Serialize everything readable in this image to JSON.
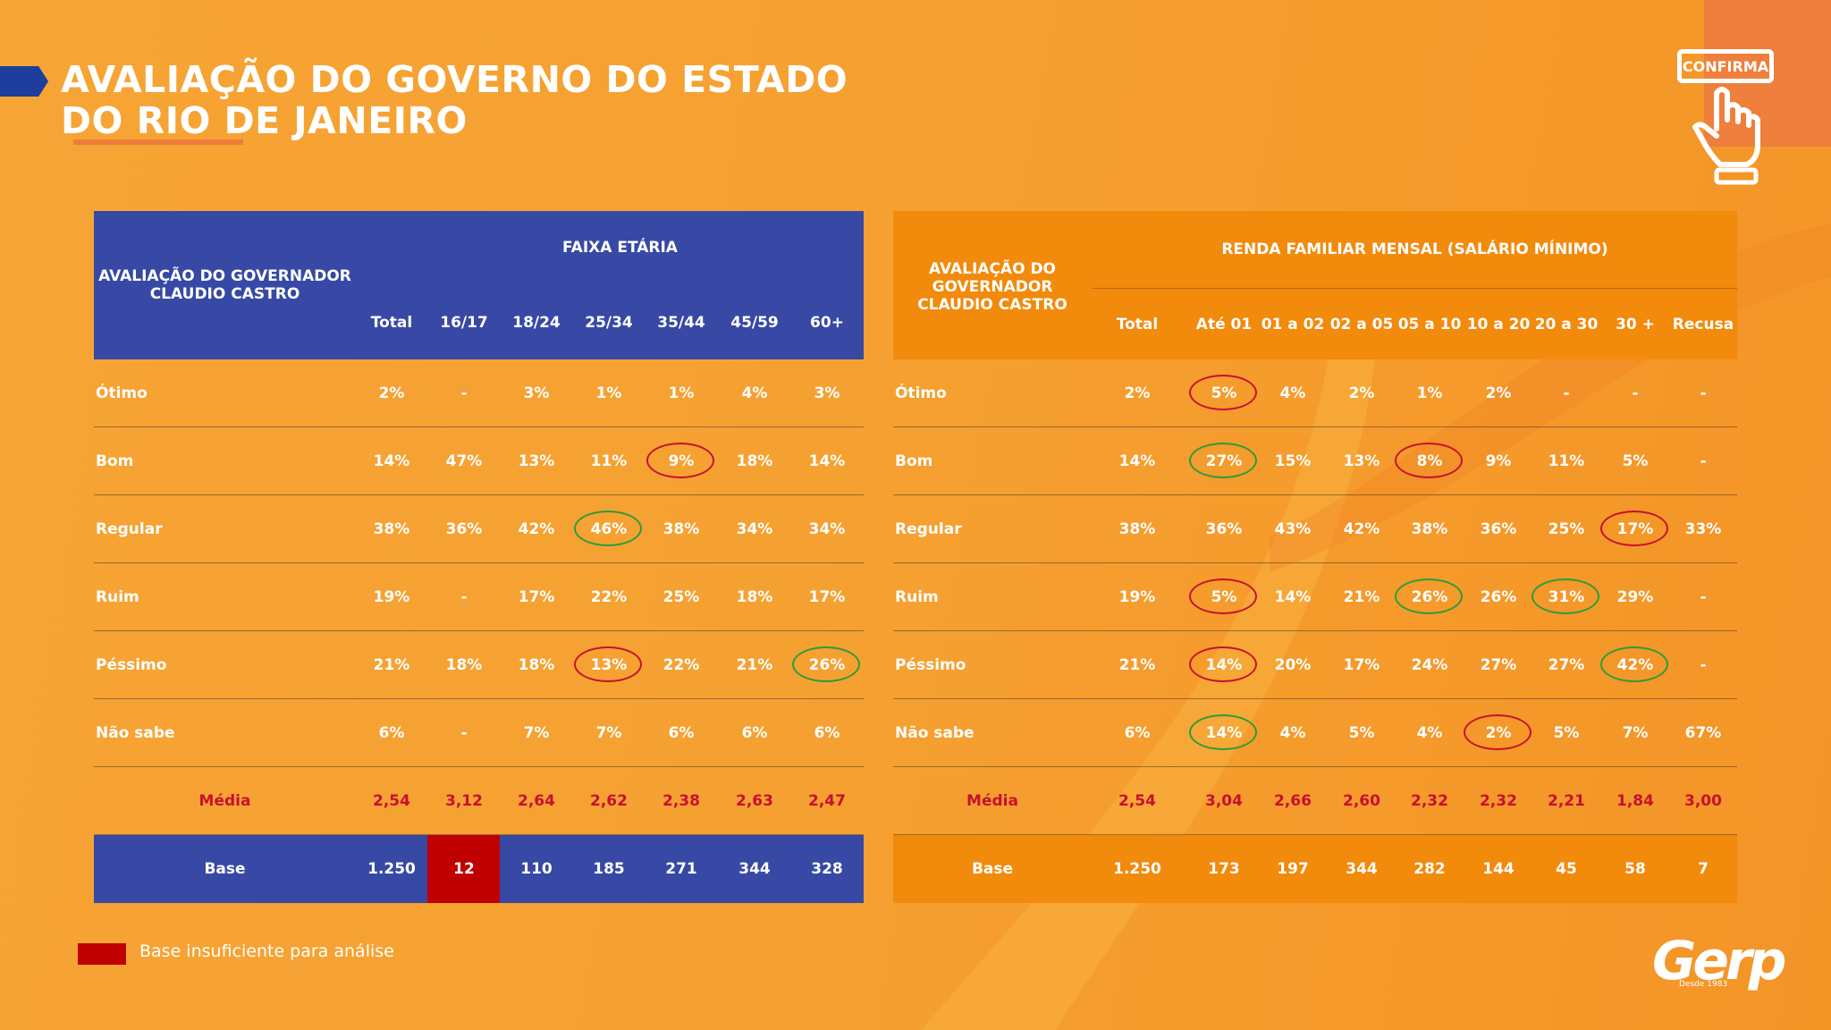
{
  "title": {
    "line1": "AVALIAÇÃO DO GOVERNO DO ESTADO",
    "line2": "DO RIO DE JANEIRO"
  },
  "badge": {
    "label": "CONFIRMA"
  },
  "left_table": {
    "corner_label": "AVALIAÇÃO DO GOVERNADOR CLAUDIO CASTRO",
    "group_header": "FAIXA ETÁRIA",
    "columns": [
      "Total",
      "16/17",
      "18/24",
      "25/34",
      "35/44",
      "45/59",
      "60+"
    ],
    "rows": [
      {
        "label": "Ótimo",
        "values": [
          "2%",
          "-",
          "3%",
          "1%",
          "1%",
          "4%",
          "3%"
        ]
      },
      {
        "label": "Bom",
        "values": [
          "14%",
          "47%",
          "13%",
          "11%",
          "9%",
          "18%",
          "14%"
        ]
      },
      {
        "label": "Regular",
        "values": [
          "38%",
          "36%",
          "42%",
          "46%",
          "38%",
          "34%",
          "34%"
        ]
      },
      {
        "label": "Ruim",
        "values": [
          "19%",
          "-",
          "17%",
          "22%",
          "25%",
          "18%",
          "17%"
        ]
      },
      {
        "label": "Péssimo",
        "values": [
          "21%",
          "18%",
          "18%",
          "13%",
          "22%",
          "21%",
          "26%"
        ]
      },
      {
        "label": "Não sabe",
        "values": [
          "6%",
          "-",
          "7%",
          "7%",
          "6%",
          "6%",
          "6%"
        ]
      }
    ],
    "media": {
      "label": "Média",
      "values": [
        "2,54",
        "3,12",
        "2,64",
        "2,62",
        "2,38",
        "2,63",
        "2,47"
      ]
    },
    "base": {
      "label": "Base",
      "values": [
        "1.250",
        "12",
        "110",
        "185",
        "271",
        "344",
        "328"
      ]
    },
    "colors": {
      "header": "#3749a4",
      "insufficient": "#c00000"
    },
    "highlights": [
      {
        "row": 1,
        "col": 4,
        "color": "red"
      },
      {
        "row": 2,
        "col": 3,
        "color": "green"
      },
      {
        "row": 4,
        "col": 3,
        "color": "red"
      },
      {
        "row": 4,
        "col": 6,
        "color": "green"
      }
    ]
  },
  "right_table": {
    "corner_label": "AVALIAÇÃO DO GOVERNADOR CLAUDIO CASTRO",
    "group_header": "RENDA FAMILIAR MENSAL (SALÁRIO MÍNIMO)",
    "columns": [
      "Total",
      "Até 01",
      "01 a 02",
      "02 a 05",
      "05 a 10",
      "10 a 20",
      "20 a 30",
      "30 +",
      "Recusa"
    ],
    "rows": [
      {
        "label": "Ótimo",
        "values": [
          "2%",
          "5%",
          "4%",
          "2%",
          "1%",
          "2%",
          "-",
          "-",
          "-"
        ]
      },
      {
        "label": "Bom",
        "values": [
          "14%",
          "27%",
          "15%",
          "13%",
          "8%",
          "9%",
          "11%",
          "5%",
          "-"
        ]
      },
      {
        "label": "Regular",
        "values": [
          "38%",
          "36%",
          "43%",
          "42%",
          "38%",
          "36%",
          "25%",
          "17%",
          "33%"
        ]
      },
      {
        "label": "Ruim",
        "values": [
          "19%",
          "5%",
          "14%",
          "21%",
          "26%",
          "26%",
          "31%",
          "29%",
          "-"
        ]
      },
      {
        "label": "Péssimo",
        "values": [
          "21%",
          "14%",
          "20%",
          "17%",
          "24%",
          "27%",
          "27%",
          "42%",
          "-"
        ]
      },
      {
        "label": "Não sabe",
        "values": [
          "6%",
          "14%",
          "4%",
          "5%",
          "4%",
          "2%",
          "5%",
          "7%",
          "67%"
        ]
      }
    ],
    "media": {
      "label": "Média",
      "values": [
        "2,54",
        "3,04",
        "2,66",
        "2,60",
        "2,32",
        "2,32",
        "2,21",
        "1,84",
        "3,00"
      ]
    },
    "base": {
      "label": "Base",
      "values": [
        "1.250",
        "173",
        "197",
        "344",
        "282",
        "144",
        "45",
        "58",
        "7"
      ]
    },
    "colors": {
      "header": "#f28a0c"
    },
    "highlights": [
      {
        "row": 0,
        "col": 1,
        "color": "red"
      },
      {
        "row": 1,
        "col": 1,
        "color": "green"
      },
      {
        "row": 1,
        "col": 4,
        "color": "red"
      },
      {
        "row": 2,
        "col": 7,
        "color": "red"
      },
      {
        "row": 3,
        "col": 1,
        "color": "red"
      },
      {
        "row": 3,
        "col": 4,
        "color": "green"
      },
      {
        "row": 3,
        "col": 6,
        "color": "green"
      },
      {
        "row": 4,
        "col": 1,
        "color": "red"
      },
      {
        "row": 4,
        "col": 7,
        "color": "green"
      },
      {
        "row": 5,
        "col": 1,
        "color": "green"
      },
      {
        "row": 5,
        "col": 5,
        "color": "red"
      }
    ]
  },
  "legend": {
    "text": "Base insuficiente para análise",
    "color": "#c00000"
  },
  "brand": {
    "name": "Gerp",
    "tagline": "Desde 1983"
  }
}
